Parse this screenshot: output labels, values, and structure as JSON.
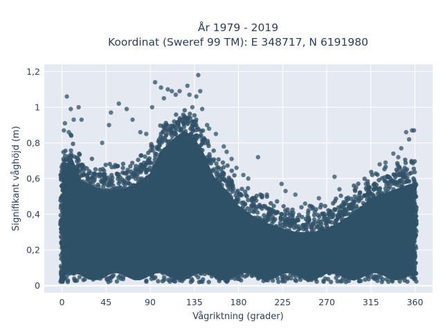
{
  "chart_data": {
    "type": "scatter",
    "title_lines": [
      "År 1979 - 2019",
      "Koordinat (Sweref 99 TM): E 348717, N 6191980"
    ],
    "xlabel": "Vågriktning (grader)",
    "ylabel": "Signifikant våghöjd (m)",
    "xlim": [
      -18,
      378
    ],
    "ylim": [
      -0.04,
      1.24
    ],
    "xticks": [
      0,
      45,
      90,
      135,
      180,
      225,
      270,
      315,
      360
    ],
    "xtick_labels": [
      "0",
      "45",
      "90",
      "135",
      "180",
      "225",
      "270",
      "315",
      "360"
    ],
    "yticks": [
      0,
      0.2,
      0.4,
      0.6,
      0.8,
      1,
      1.2
    ],
    "ytick_labels": [
      "0",
      "0,2",
      "0,4",
      "0,6",
      "0,8",
      "1",
      "1,2"
    ],
    "grid": true,
    "legend": "none",
    "marker_color": "#2f5168",
    "plot_background": "#e5e9f1",
    "envelope": {
      "description_of_upper_edge_of_dense_cloud": "max dense Hs by direction",
      "x": [
        0,
        10,
        20,
        35,
        45,
        60,
        75,
        90,
        100,
        115,
        125,
        135,
        145,
        155,
        170,
        180,
        195,
        210,
        225,
        240,
        255,
        270,
        285,
        300,
        315,
        330,
        345,
        355,
        360
      ],
      "y": [
        0.68,
        0.75,
        0.62,
        0.58,
        0.56,
        0.57,
        0.6,
        0.66,
        0.78,
        0.86,
        0.9,
        0.86,
        0.77,
        0.64,
        0.55,
        0.48,
        0.42,
        0.38,
        0.35,
        0.33,
        0.33,
        0.35,
        0.39,
        0.45,
        0.52,
        0.55,
        0.58,
        0.6,
        0.6
      ]
    },
    "outliers": [
      {
        "x": 5,
        "y": 1.06
      },
      {
        "x": 9,
        "y": 0.99
      },
      {
        "x": 17,
        "y": 1.0
      },
      {
        "x": 12,
        "y": 0.93
      },
      {
        "x": 3,
        "y": 0.91
      },
      {
        "x": 20,
        "y": 0.93
      },
      {
        "x": 2,
        "y": 0.87
      },
      {
        "x": 7,
        "y": 0.86
      },
      {
        "x": 41,
        "y": 0.8
      },
      {
        "x": 48,
        "y": 0.9
      },
      {
        "x": 50,
        "y": 0.97
      },
      {
        "x": 58,
        "y": 1.02
      },
      {
        "x": 66,
        "y": 0.99
      },
      {
        "x": 72,
        "y": 0.93
      },
      {
        "x": 80,
        "y": 0.86
      },
      {
        "x": 86,
        "y": 0.85
      },
      {
        "x": 92,
        "y": 1.0
      },
      {
        "x": 95,
        "y": 1.14
      },
      {
        "x": 101,
        "y": 1.11
      },
      {
        "x": 104,
        "y": 1.05
      },
      {
        "x": 108,
        "y": 1.1
      },
      {
        "x": 112,
        "y": 1.09
      },
      {
        "x": 116,
        "y": 1.07
      },
      {
        "x": 120,
        "y": 1.09
      },
      {
        "x": 128,
        "y": 1.12
      },
      {
        "x": 130,
        "y": 1.07
      },
      {
        "x": 139,
        "y": 1.18
      },
      {
        "x": 141,
        "y": 1.09
      },
      {
        "x": 133,
        "y": 1.0
      },
      {
        "x": 137,
        "y": 1.06
      },
      {
        "x": 143,
        "y": 0.99
      },
      {
        "x": 148,
        "y": 0.9
      },
      {
        "x": 150,
        "y": 0.88
      },
      {
        "x": 157,
        "y": 0.85
      },
      {
        "x": 165,
        "y": 0.78
      },
      {
        "x": 168,
        "y": 0.75
      },
      {
        "x": 173,
        "y": 0.71
      },
      {
        "x": 178,
        "y": 0.66
      },
      {
        "x": 185,
        "y": 0.62
      },
      {
        "x": 190,
        "y": 0.6
      },
      {
        "x": 200,
        "y": 0.72
      },
      {
        "x": 209,
        "y": 0.51
      },
      {
        "x": 224,
        "y": 0.57
      },
      {
        "x": 228,
        "y": 0.53
      },
      {
        "x": 238,
        "y": 0.51
      },
      {
        "x": 248,
        "y": 0.46
      },
      {
        "x": 262,
        "y": 0.49
      },
      {
        "x": 278,
        "y": 0.61
      },
      {
        "x": 283,
        "y": 0.54
      },
      {
        "x": 300,
        "y": 0.55
      },
      {
        "x": 310,
        "y": 0.57
      },
      {
        "x": 324,
        "y": 0.68
      },
      {
        "x": 330,
        "y": 0.69
      },
      {
        "x": 338,
        "y": 0.74
      },
      {
        "x": 346,
        "y": 0.77
      },
      {
        "x": 351,
        "y": 0.86
      },
      {
        "x": 357,
        "y": 0.87
      },
      {
        "x": 359,
        "y": 0.87
      },
      {
        "x": 354,
        "y": 0.82
      },
      {
        "x": 343,
        "y": 0.72
      }
    ],
    "y_floor": 0.02
  }
}
